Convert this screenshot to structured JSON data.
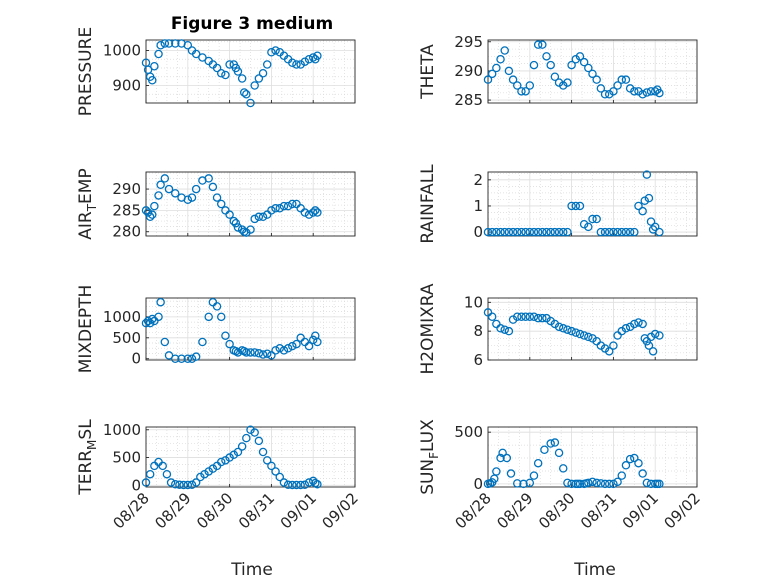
{
  "figure": {
    "title": "Figure 3 medium",
    "marker_color": "#0072BD",
    "x_ticks": [
      "08/28",
      "08/29",
      "08/30",
      "08/31",
      "09/01",
      "09/02"
    ],
    "xlabel": "Time"
  },
  "chart_data": [
    {
      "type": "scatter",
      "ylabel_main": "PRESSURE",
      "ylabel_sub": "",
      "ylabel_rest": "",
      "yticks": [
        900,
        1000
      ],
      "ylim": [
        850,
        1030
      ],
      "xlim": [
        0,
        5
      ],
      "grid": true,
      "x": [
        0.0,
        0.05,
        0.1,
        0.15,
        0.2,
        0.3,
        0.35,
        0.45,
        0.55,
        0.7,
        0.85,
        1.0,
        1.1,
        1.2,
        1.35,
        1.5,
        1.6,
        1.7,
        1.8,
        1.9,
        2.0,
        2.1,
        2.15,
        2.2,
        2.3,
        2.35,
        2.4,
        2.5,
        2.6,
        2.7,
        2.8,
        2.9,
        3.0,
        3.1,
        3.2,
        3.3,
        3.4,
        3.5,
        3.6,
        3.7,
        3.8,
        3.9,
        4.0,
        4.05,
        4.1
      ],
      "y": [
        965,
        945,
        925,
        915,
        955,
        990,
        1015,
        1020,
        1020,
        1020,
        1020,
        1015,
        1000,
        990,
        980,
        970,
        960,
        950,
        935,
        930,
        960,
        960,
        950,
        940,
        920,
        880,
        875,
        850,
        900,
        920,
        935,
        960,
        995,
        1000,
        995,
        985,
        975,
        965,
        960,
        960,
        968,
        975,
        980,
        975,
        985
      ]
    },
    {
      "type": "scatter",
      "ylabel_main": "THETA",
      "ylabel_sub": "",
      "ylabel_rest": "",
      "yticks": [
        285,
        290,
        295
      ],
      "ylim": [
        284.5,
        295.3
      ],
      "xlim": [
        0,
        5
      ],
      "grid": true,
      "x": [
        0.0,
        0.1,
        0.2,
        0.3,
        0.4,
        0.5,
        0.6,
        0.7,
        0.8,
        0.9,
        1.0,
        1.1,
        1.2,
        1.3,
        1.4,
        1.5,
        1.6,
        1.7,
        1.8,
        1.9,
        2.0,
        2.1,
        2.2,
        2.3,
        2.4,
        2.5,
        2.6,
        2.7,
        2.8,
        2.9,
        3.0,
        3.1,
        3.2,
        3.3,
        3.4,
        3.5,
        3.6,
        3.7,
        3.8,
        3.9,
        4.0,
        4.05,
        4.1
      ],
      "y": [
        288.5,
        289.5,
        290.5,
        292,
        293.5,
        290,
        288.5,
        287.5,
        286.5,
        286.5,
        287.5,
        291,
        294.5,
        294.5,
        292.5,
        291,
        289,
        288,
        287.5,
        288,
        291,
        292,
        292.5,
        291.5,
        290.5,
        289.5,
        288.5,
        287,
        286,
        286,
        286.5,
        287.5,
        288.5,
        288.5,
        287,
        286.5,
        286.5,
        286,
        286.3,
        286.5,
        286.5,
        286.8,
        286.2
      ]
    },
    {
      "type": "scatter",
      "ylabel_main": "AIR",
      "ylabel_sub": "T",
      "ylabel_rest": "EMP",
      "yticks": [
        280,
        285,
        290
      ],
      "ylim": [
        279,
        294
      ],
      "xlim": [
        0,
        5
      ],
      "grid": true,
      "x": [
        0.0,
        0.05,
        0.1,
        0.15,
        0.2,
        0.3,
        0.35,
        0.45,
        0.55,
        0.7,
        0.85,
        1.0,
        1.1,
        1.2,
        1.35,
        1.5,
        1.6,
        1.7,
        1.8,
        1.9,
        2.0,
        2.1,
        2.15,
        2.2,
        2.3,
        2.35,
        2.4,
        2.5,
        2.6,
        2.7,
        2.8,
        2.9,
        3.0,
        3.1,
        3.2,
        3.3,
        3.4,
        3.5,
        3.6,
        3.7,
        3.8,
        3.9,
        4.0,
        4.05,
        4.1
      ],
      "y": [
        285,
        284.5,
        283.5,
        284,
        286,
        288.5,
        291,
        292.5,
        290,
        289,
        288,
        287.5,
        288,
        290,
        292,
        292.5,
        290.5,
        288,
        286.5,
        285,
        284,
        282.5,
        282,
        281,
        280.5,
        280,
        279.8,
        280.5,
        283,
        283.5,
        283.5,
        284,
        285,
        285.5,
        285.5,
        286,
        286,
        286.5,
        286.5,
        285.5,
        284.5,
        284,
        284.5,
        285,
        284.5
      ]
    },
    {
      "type": "scatter",
      "ylabel_main": "RAINFALL",
      "ylabel_sub": "",
      "ylabel_rest": "",
      "yticks": [
        0,
        1,
        2
      ],
      "ylim": [
        -0.15,
        2.3
      ],
      "xlim": [
        0,
        5
      ],
      "grid": true,
      "x": [
        0.0,
        0.1,
        0.2,
        0.3,
        0.4,
        0.5,
        0.6,
        0.7,
        0.8,
        0.9,
        1.0,
        1.1,
        1.2,
        1.3,
        1.4,
        1.5,
        1.6,
        1.7,
        1.8,
        1.9,
        2.0,
        2.1,
        2.2,
        2.3,
        2.4,
        2.5,
        2.6,
        2.7,
        2.8,
        2.9,
        3.0,
        3.1,
        3.2,
        3.3,
        3.4,
        3.5,
        3.6,
        3.7,
        3.75,
        3.8,
        3.85,
        3.9,
        3.95,
        4.0,
        4.1
      ],
      "y": [
        0,
        0,
        0,
        0,
        0,
        0,
        0,
        0,
        0,
        0,
        0,
        0,
        0,
        0,
        0,
        0,
        0,
        0,
        0,
        0,
        1.0,
        1.0,
        1.0,
        0.3,
        0.2,
        0.5,
        0.5,
        0,
        0,
        0,
        0,
        0,
        0,
        0,
        0,
        0,
        1.0,
        0.8,
        1.2,
        2.2,
        1.3,
        0.4,
        0.1,
        0.2,
        0
      ]
    },
    {
      "type": "scatter",
      "ylabel_main": "MIXDEPTH",
      "ylabel_sub": "",
      "ylabel_rest": "",
      "yticks": [
        0,
        500,
        1000
      ],
      "ylim": [
        -30,
        1450
      ],
      "xlim": [
        0,
        5
      ],
      "grid": true,
      "x": [
        0.0,
        0.05,
        0.1,
        0.15,
        0.2,
        0.3,
        0.35,
        0.45,
        0.55,
        0.7,
        0.85,
        1.0,
        1.1,
        1.2,
        1.35,
        1.5,
        1.6,
        1.7,
        1.8,
        1.9,
        2.0,
        2.1,
        2.15,
        2.2,
        2.3,
        2.35,
        2.4,
        2.5,
        2.6,
        2.7,
        2.8,
        2.9,
        3.0,
        3.1,
        3.2,
        3.3,
        3.4,
        3.5,
        3.6,
        3.7,
        3.8,
        3.9,
        4.0,
        4.05,
        4.1
      ],
      "y": [
        850,
        900,
        850,
        950,
        900,
        1000,
        1350,
        400,
        80,
        0,
        0,
        0,
        0,
        50,
        400,
        1000,
        1350,
        1250,
        1000,
        550,
        350,
        200,
        180,
        150,
        200,
        180,
        150,
        150,
        150,
        130,
        100,
        120,
        80,
        200,
        250,
        200,
        250,
        300,
        350,
        500,
        400,
        300,
        450,
        550,
        400
      ]
    },
    {
      "type": "scatter",
      "ylabel_main": "H2OMIXRA",
      "ylabel_sub": "",
      "ylabel_rest": "",
      "yticks": [
        6,
        8,
        10
      ],
      "ylim": [
        6,
        10.3
      ],
      "xlim": [
        0,
        5
      ],
      "grid": true,
      "x": [
        0.0,
        0.1,
        0.2,
        0.3,
        0.4,
        0.5,
        0.6,
        0.7,
        0.8,
        0.9,
        1.0,
        1.1,
        1.2,
        1.3,
        1.4,
        1.5,
        1.6,
        1.7,
        1.8,
        1.9,
        2.0,
        2.1,
        2.2,
        2.3,
        2.4,
        2.5,
        2.6,
        2.7,
        2.8,
        2.9,
        3.0,
        3.1,
        3.2,
        3.3,
        3.4,
        3.5,
        3.6,
        3.7,
        3.75,
        3.8,
        3.85,
        3.9,
        3.95,
        4.0,
        4.1
      ],
      "y": [
        9.3,
        9.0,
        8.5,
        8.2,
        8.1,
        8.0,
        8.8,
        9.0,
        9.0,
        9.0,
        9.0,
        9.0,
        8.9,
        8.9,
        8.9,
        8.7,
        8.5,
        8.3,
        8.2,
        8.1,
        8.0,
        7.9,
        7.8,
        7.7,
        7.6,
        7.5,
        7.3,
        7.0,
        6.8,
        6.6,
        7.0,
        7.7,
        8.0,
        8.2,
        8.3,
        8.5,
        8.6,
        8.5,
        7.5,
        7.3,
        7.0,
        7.6,
        6.6,
        7.8,
        7.7
      ]
    },
    {
      "type": "scatter",
      "ylabel_main": "TERR",
      "ylabel_sub": "M",
      "ylabel_rest": "SL",
      "yticks": [
        0,
        500,
        1000
      ],
      "ylim": [
        -30,
        1050
      ],
      "xlim": [
        0,
        5
      ],
      "grid": true,
      "x": [
        0.0,
        0.1,
        0.2,
        0.3,
        0.4,
        0.5,
        0.6,
        0.7,
        0.8,
        0.9,
        1.0,
        1.1,
        1.2,
        1.3,
        1.4,
        1.5,
        1.6,
        1.7,
        1.8,
        1.9,
        2.0,
        2.1,
        2.2,
        2.3,
        2.4,
        2.5,
        2.6,
        2.7,
        2.8,
        2.9,
        3.0,
        3.1,
        3.2,
        3.3,
        3.4,
        3.5,
        3.6,
        3.7,
        3.8,
        3.9,
        4.0,
        4.05,
        4.1
      ],
      "y": [
        50,
        200,
        350,
        420,
        350,
        200,
        50,
        20,
        10,
        5,
        5,
        10,
        50,
        150,
        200,
        250,
        300,
        350,
        420,
        450,
        500,
        550,
        600,
        700,
        850,
        1000,
        950,
        800,
        600,
        450,
        350,
        250,
        150,
        50,
        10,
        5,
        5,
        5,
        10,
        50,
        80,
        40,
        20
      ]
    },
    {
      "type": "scatter",
      "ylabel_main": "SUN",
      "ylabel_sub": "F",
      "ylabel_rest": "LUX",
      "yticks": [
        0,
        500
      ],
      "ylim": [
        -30,
        550
      ],
      "xlim": [
        0,
        5
      ],
      "grid": true,
      "x": [
        0.0,
        0.05,
        0.1,
        0.15,
        0.2,
        0.3,
        0.35,
        0.45,
        0.55,
        0.7,
        0.85,
        1.0,
        1.1,
        1.2,
        1.35,
        1.5,
        1.6,
        1.7,
        1.8,
        1.9,
        2.0,
        2.1,
        2.15,
        2.2,
        2.3,
        2.35,
        2.4,
        2.5,
        2.6,
        2.7,
        2.8,
        2.9,
        3.0,
        3.1,
        3.2,
        3.3,
        3.4,
        3.5,
        3.6,
        3.7,
        3.8,
        3.9,
        4.0,
        4.05,
        4.1
      ],
      "y": [
        0,
        5,
        15,
        50,
        120,
        250,
        300,
        250,
        100,
        5,
        0,
        10,
        80,
        200,
        330,
        390,
        400,
        300,
        150,
        10,
        0,
        0,
        0,
        0,
        0,
        5,
        10,
        20,
        10,
        5,
        0,
        0,
        0,
        20,
        80,
        180,
        240,
        250,
        200,
        100,
        10,
        0,
        0,
        0,
        0
      ]
    }
  ]
}
